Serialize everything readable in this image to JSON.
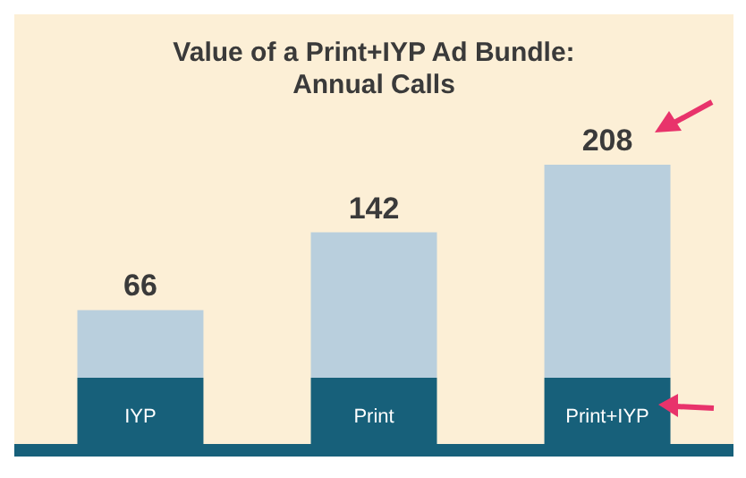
{
  "chart_data": {
    "type": "bar",
    "title": "Value of a Print+IYP Ad Bundle:\nAnnual Calls",
    "categories": [
      "IYP",
      "Print",
      "Print+IYP"
    ],
    "values": [
      66,
      142,
      208
    ],
    "color": "#b9cfdd",
    "data_labels": true
  }
}
